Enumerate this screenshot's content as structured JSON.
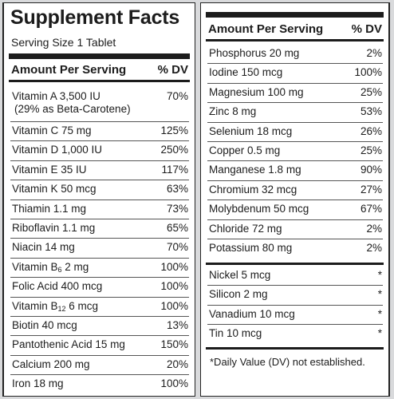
{
  "panel": {
    "title": "Supplement Facts",
    "serving_size": "Serving Size 1 Tablet",
    "header_amount": "Amount Per Serving",
    "header_dv": "% DV"
  },
  "left_rows": [
    {
      "name": "Vitamin A 3,500 IU",
      "sub_line": "(29% as Beta-Carotene)",
      "dv": "70%"
    },
    {
      "name": "Vitamin C 75 mg",
      "dv": "125%"
    },
    {
      "name": "Vitamin D 1,000 IU",
      "dv": "250%"
    },
    {
      "name": "Vitamin E 35 IU",
      "dv": "117%"
    },
    {
      "name": "Vitamin K 50 mcg",
      "dv": "63%"
    },
    {
      "name": "Thiamin 1.1 mg",
      "dv": "73%"
    },
    {
      "name": "Riboflavin 1.1 mg",
      "dv": "65%"
    },
    {
      "name": "Niacin 14 mg",
      "dv": "70%"
    },
    {
      "name": "Vitamin B",
      "subscript": "6",
      "name_rest": " 2 mg",
      "dv": "100%"
    },
    {
      "name": "Folic Acid 400 mcg",
      "dv": "100%"
    },
    {
      "name": "Vitamin B",
      "subscript": "12",
      "name_rest": " 6 mcg",
      "dv": "100%"
    },
    {
      "name": "Biotin 40 mcg",
      "dv": "13%"
    },
    {
      "name": "Pantothenic Acid 15 mg",
      "dv": "150%"
    },
    {
      "name": "Calcium 200 mg",
      "dv": "20%"
    },
    {
      "name": "Iron 18 mg",
      "dv": "100%"
    }
  ],
  "right_rows": [
    {
      "name": "Phosphorus 20 mg",
      "dv": "2%"
    },
    {
      "name": "Iodine 150 mcg",
      "dv": "100%"
    },
    {
      "name": "Magnesium 100 mg",
      "dv": "25%"
    },
    {
      "name": "Zinc 8 mg",
      "dv": "53%"
    },
    {
      "name": "Selenium 18 mcg",
      "dv": "26%"
    },
    {
      "name": "Copper 0.5 mg",
      "dv": "25%"
    },
    {
      "name": "Manganese 1.8 mg",
      "dv": "90%"
    },
    {
      "name": "Chromium 32 mcg",
      "dv": "27%"
    },
    {
      "name": "Molybdenum 50 mcg",
      "dv": "67%"
    },
    {
      "name": "Chloride 72 mg",
      "dv": "2%"
    },
    {
      "name": "Potassium 80 mg",
      "dv": "2%"
    }
  ],
  "right_rows_2": [
    {
      "name": "Nickel 5 mcg",
      "dv": "*"
    },
    {
      "name": "Silicon 2 mg",
      "dv": "*"
    },
    {
      "name": "Vanadium 10 mcg",
      "dv": "*"
    },
    {
      "name": "Tin 10 mcg",
      "dv": "*"
    }
  ],
  "footnote": "*Daily Value (DV) not established."
}
